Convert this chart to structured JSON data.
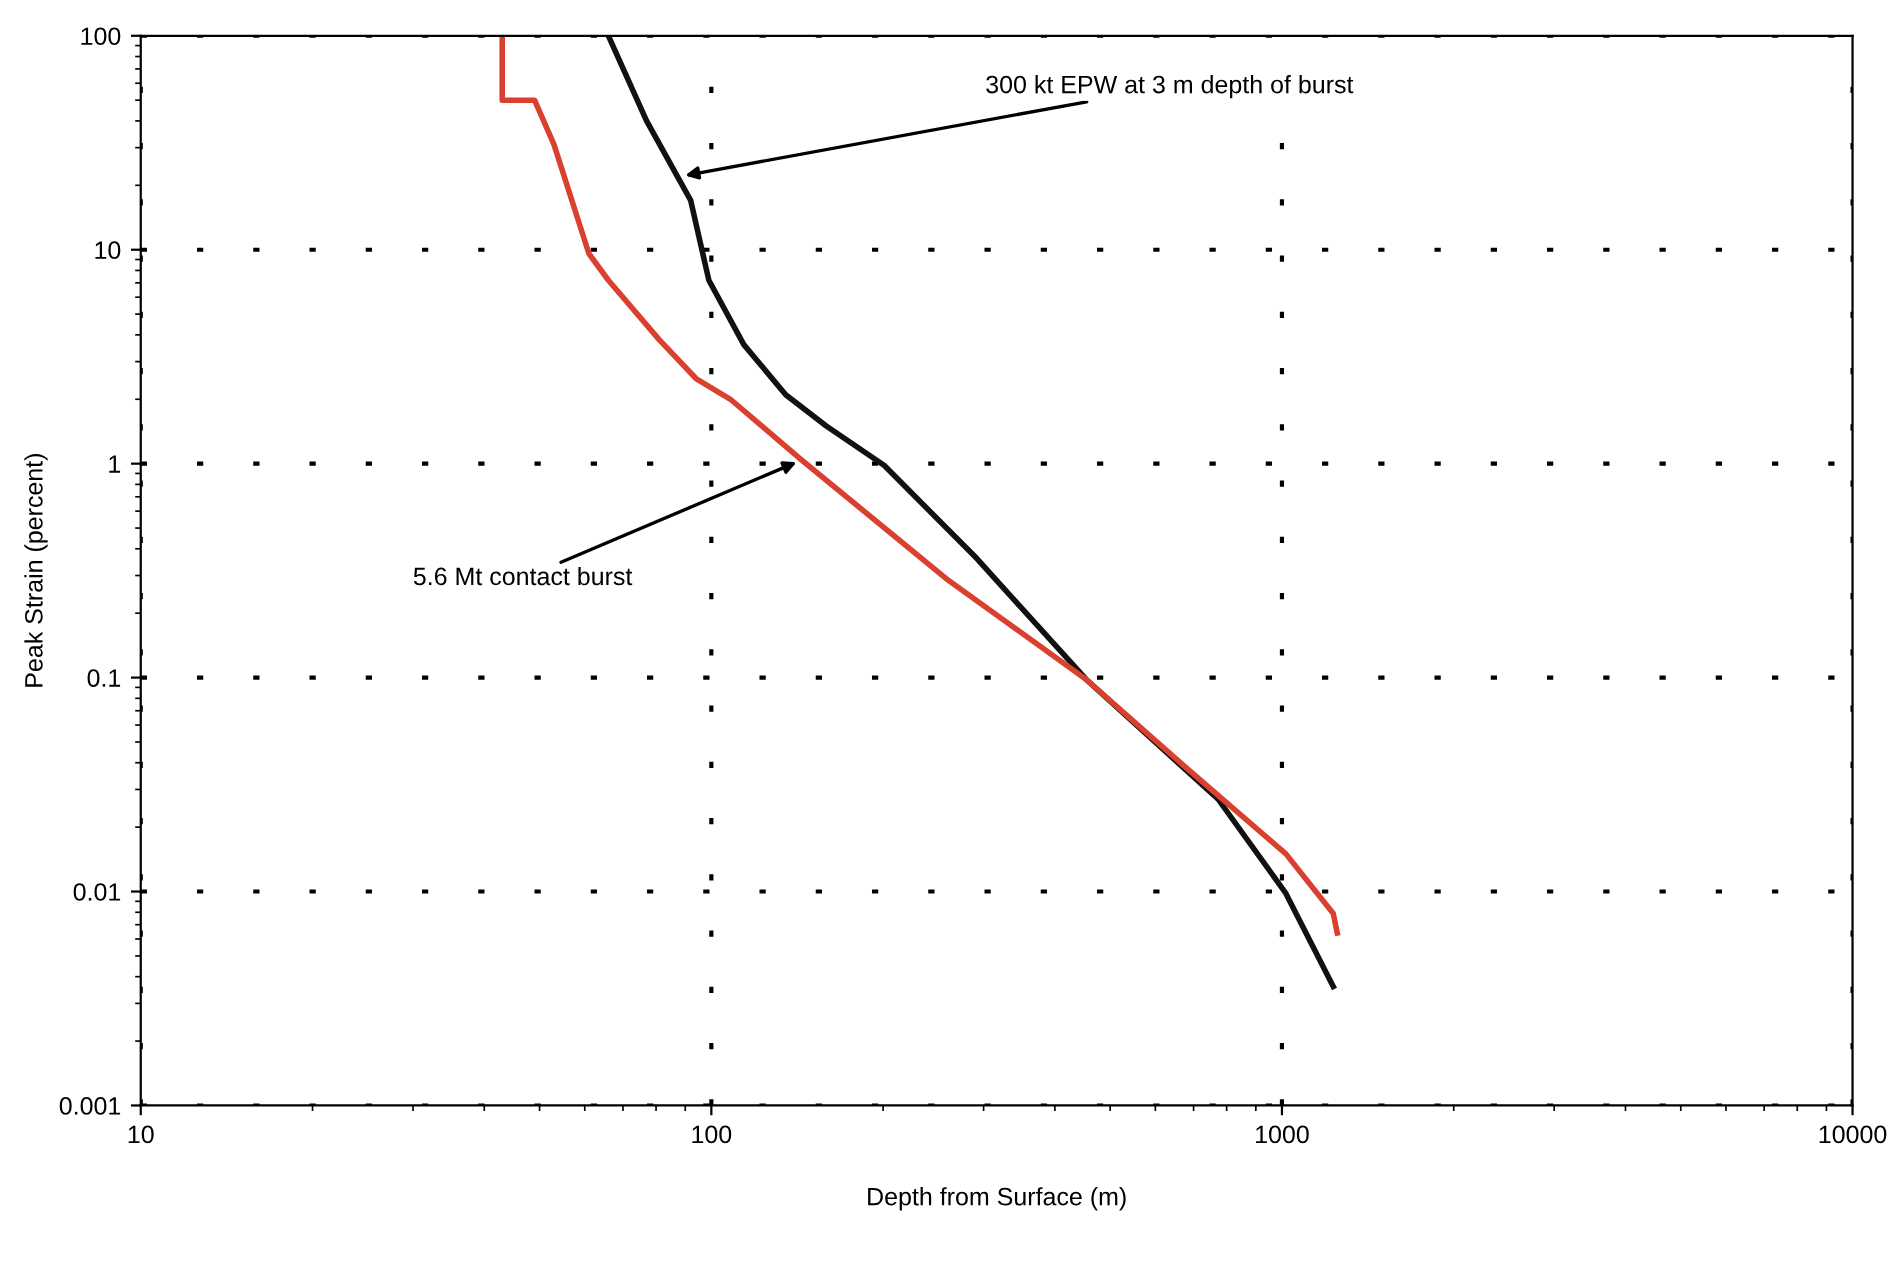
{
  "chart_data": {
    "type": "line",
    "xlabel": "Depth from Surface (m)",
    "ylabel": "Peak Strain (percent)",
    "log": "xy",
    "grid": true,
    "line_style": "solid",
    "marker": "none",
    "xlim": [
      10,
      10000
    ],
    "xticks": [
      10,
      100,
      1000,
      10000
    ],
    "ylim": [
      0.001,
      100
    ],
    "yticks": [
      0.001,
      0.01,
      0.1,
      1,
      10,
      100
    ],
    "series": [
      {
        "color": "#111111",
        "x": [
          66,
          77,
          92,
          99,
          114,
          135,
          159,
          201,
          292,
          454,
          773,
          1016,
          1230
        ],
        "values": [
          100,
          40,
          17,
          7.2,
          3.6,
          2.1,
          1.5,
          0.98,
          0.36,
          0.098,
          0.027,
          0.0098,
          0.0036
        ]
      },
      {
        "color": "#d9402f",
        "x": [
          43,
          43,
          49,
          53,
          61,
          66,
          81,
          94,
          108,
          144,
          258,
          454,
          671,
          1016,
          1230,
          1250
        ],
        "values": [
          100,
          50,
          50,
          31,
          9.6,
          7.2,
          3.8,
          2.5,
          2.0,
          1.04,
          0.29,
          0.098,
          0.039,
          0.015,
          0.0079,
          0.0064
        ]
      }
    ],
    "annotations": [
      {
        "text": "300 kt EPW at 3 m depth of burst",
        "x": 88,
        "y": 22
      },
      {
        "text": "5.6 Mt contact burst",
        "x": 144,
        "y": 1.04
      }
    ]
  }
}
